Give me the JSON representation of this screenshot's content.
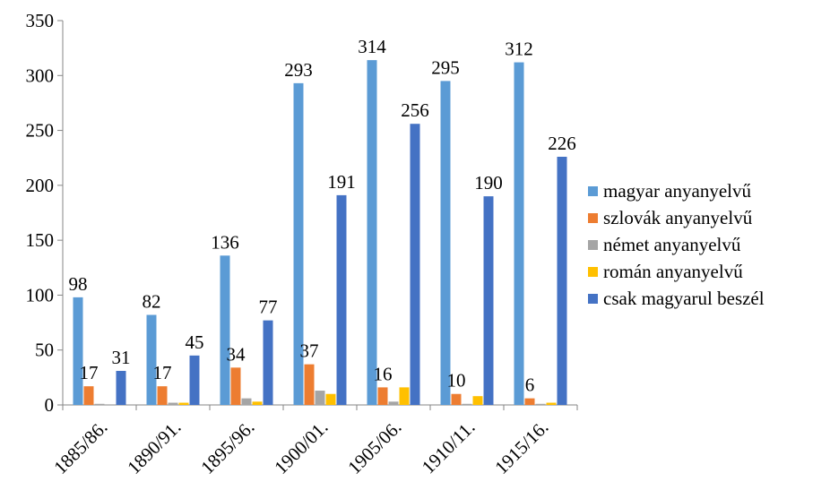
{
  "chart_data": {
    "type": "bar",
    "title": "",
    "xlabel": "",
    "ylabel": "",
    "ylim": [
      0,
      350
    ],
    "yticks": [
      0,
      50,
      100,
      150,
      200,
      250,
      300,
      350
    ],
    "grid": false,
    "legend_position": "right",
    "categories": [
      "1885/86.",
      "1890/91.",
      "1895/96.",
      "1900/01.",
      "1905/06.",
      "1910/11.",
      "1915/16."
    ],
    "series": [
      {
        "name": "magyar anyanyelvű",
        "color": "#5B9BD5",
        "values": [
          98,
          82,
          136,
          293,
          314,
          295,
          312
        ],
        "labels": [
          "98",
          "82",
          "136",
          "293",
          "314",
          "295",
          "312"
        ]
      },
      {
        "name": "szlovák anyanyelvű",
        "color": "#ED7D31",
        "values": [
          17,
          17,
          34,
          37,
          16,
          10,
          6
        ],
        "labels": [
          "17",
          "17",
          "34",
          "37",
          "16",
          "10",
          "6"
        ]
      },
      {
        "name": "német anyanyelvű",
        "color": "#A5A5A5",
        "values": [
          1,
          2,
          6,
          13,
          3,
          1,
          1
        ],
        "labels": []
      },
      {
        "name": "román anyanyelvű",
        "color": "#FFC000",
        "values": [
          0,
          2,
          3,
          10,
          16,
          8,
          2
        ],
        "labels": []
      },
      {
        "name": "csak magyarul beszél",
        "color": "#4472C4",
        "values": [
          31,
          45,
          77,
          191,
          256,
          190,
          226
        ],
        "labels": [
          "31",
          "45",
          "77",
          "191",
          "256",
          "190",
          "226"
        ]
      }
    ]
  }
}
